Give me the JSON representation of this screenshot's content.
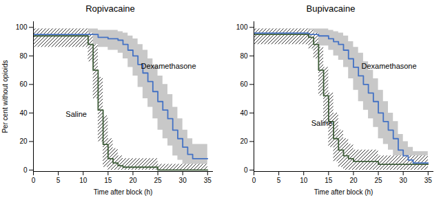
{
  "chart_data": [
    {
      "type": "line",
      "title": "Ropivacaine",
      "xlabel": "Time after block (h)",
      "ylabel": "Per cent without opioids",
      "xlim": [
        0,
        36
      ],
      "ylim": [
        -1,
        104
      ],
      "xticks": [
        0,
        5,
        10,
        15,
        20,
        25,
        30,
        35
      ],
      "yticks": [
        0,
        20,
        40,
        60,
        80,
        100
      ],
      "series": [
        {
          "name": "Dexamethasone",
          "color": "#4472c4",
          "x": [
            0,
            12,
            13,
            15,
            17,
            18,
            19,
            20,
            21,
            22,
            23,
            24,
            25,
            26,
            27,
            28,
            29,
            30,
            31,
            32,
            35
          ],
          "values": [
            95,
            95,
            93,
            92,
            91,
            88,
            84,
            80,
            74,
            68,
            62,
            55,
            48,
            42,
            36,
            28,
            22,
            16,
            11,
            8,
            8
          ],
          "ci_upper": [
            99,
            99,
            98,
            98,
            97,
            96,
            94,
            92,
            88,
            84,
            78,
            73,
            66,
            60,
            53,
            44,
            36,
            28,
            22,
            18,
            18
          ],
          "ci_lower": [
            88,
            88,
            86,
            84,
            82,
            78,
            72,
            66,
            58,
            50,
            44,
            36,
            28,
            22,
            17,
            10,
            7,
            3,
            0,
            0,
            0
          ]
        },
        {
          "name": "Saline",
          "color": "#3d5c38",
          "x": [
            0,
            10,
            11,
            12,
            13,
            14,
            15,
            16,
            17,
            18,
            25,
            35
          ],
          "values": [
            94,
            94,
            88,
            70,
            42,
            18,
            8,
            5,
            3,
            2,
            0,
            0
          ],
          "ci_upper": [
            99,
            99,
            96,
            88,
            65,
            38,
            22,
            15,
            10,
            8,
            4,
            4
          ],
          "ci_lower": [
            86,
            86,
            76,
            50,
            20,
            2,
            0,
            0,
            0,
            0,
            0,
            0
          ]
        }
      ]
    },
    {
      "type": "line",
      "title": "Bupivacaine",
      "xlabel": "Time after block (h)",
      "xlim": [
        0,
        36
      ],
      "ylim": [
        -1,
        104
      ],
      "xticks": [
        0,
        5,
        10,
        15,
        20,
        25,
        30,
        35
      ],
      "yticks": [
        0,
        20,
        40,
        60,
        80,
        100
      ],
      "series": [
        {
          "name": "Dexamethasone",
          "color": "#4472c4",
          "x": [
            0,
            10,
            11,
            13,
            15,
            16,
            17,
            18,
            19,
            20,
            21,
            22,
            23,
            24,
            25,
            26,
            27,
            28,
            29,
            30,
            31,
            32,
            35
          ],
          "values": [
            96,
            96,
            95,
            94,
            92,
            90,
            88,
            84,
            78,
            72,
            66,
            60,
            54,
            48,
            40,
            34,
            28,
            22,
            14,
            10,
            7,
            5,
            5
          ],
          "ci_upper": [
            99,
            99,
            99,
            99,
            98,
            97,
            96,
            94,
            90,
            86,
            82,
            76,
            70,
            64,
            56,
            48,
            40,
            34,
            25,
            20,
            16,
            13,
            13
          ],
          "ci_lower": [
            90,
            90,
            89,
            87,
            84,
            80,
            77,
            72,
            64,
            56,
            48,
            42,
            36,
            30,
            22,
            18,
            14,
            8,
            2,
            0,
            0,
            0,
            0
          ]
        },
        {
          "name": "Saline",
          "color": "#3d5c38",
          "x": [
            0,
            10,
            11,
            12,
            13,
            14,
            15,
            16,
            17,
            18,
            19,
            20,
            25,
            35
          ],
          "values": [
            95,
            95,
            93,
            88,
            70,
            52,
            34,
            22,
            14,
            10,
            8,
            6,
            4,
            4
          ],
          "ci_upper": [
            99,
            99,
            98,
            96,
            86,
            72,
            54,
            40,
            28,
            22,
            18,
            14,
            10,
            10
          ],
          "ci_lower": [
            88,
            88,
            85,
            78,
            52,
            32,
            16,
            6,
            2,
            0,
            0,
            0,
            0,
            0
          ]
        }
      ]
    }
  ]
}
